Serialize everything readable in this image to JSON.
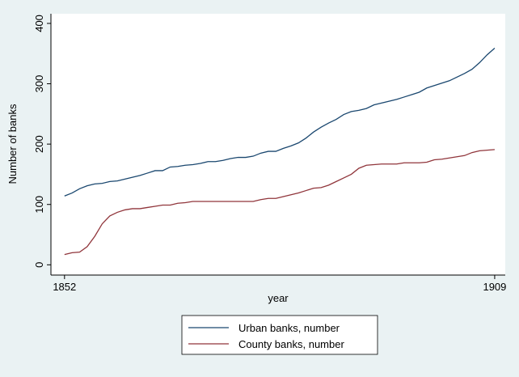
{
  "chart_data": {
    "type": "line",
    "x_label": "year",
    "y_label": "Number of banks",
    "x": [
      1852,
      1853,
      1854,
      1855,
      1856,
      1857,
      1858,
      1859,
      1860,
      1861,
      1862,
      1863,
      1864,
      1865,
      1866,
      1867,
      1868,
      1869,
      1870,
      1871,
      1872,
      1873,
      1874,
      1875,
      1876,
      1877,
      1878,
      1879,
      1880,
      1881,
      1882,
      1883,
      1884,
      1885,
      1886,
      1887,
      1888,
      1889,
      1890,
      1891,
      1892,
      1893,
      1894,
      1895,
      1896,
      1897,
      1898,
      1899,
      1900,
      1901,
      1902,
      1903,
      1904,
      1905,
      1906,
      1907,
      1908,
      1909
    ],
    "series": [
      {
        "name": "Urban banks, number",
        "color": "#1a476f",
        "values": [
          114,
          119,
          126,
          131,
          134,
          135,
          138,
          139,
          142,
          145,
          148,
          152,
          156,
          156,
          162,
          163,
          165,
          166,
          168,
          171,
          171,
          173,
          176,
          178,
          178,
          180,
          185,
          188,
          188,
          193,
          197,
          202,
          210,
          220,
          228,
          235,
          241,
          249,
          254,
          256,
          259,
          265,
          268,
          271,
          274,
          278,
          282,
          286,
          293,
          297,
          301,
          305,
          311,
          317,
          324,
          335,
          348,
          359
        ]
      },
      {
        "name": "County banks, number",
        "color": "#90353b",
        "values": [
          17,
          20,
          21,
          30,
          47,
          68,
          81,
          87,
          91,
          93,
          93,
          95,
          97,
          99,
          99,
          102,
          103,
          105,
          105,
          105,
          105,
          105,
          105,
          105,
          105,
          105,
          108,
          110,
          110,
          113,
          116,
          119,
          123,
          127,
          128,
          132,
          138,
          144,
          150,
          160,
          165,
          166,
          167,
          167,
          167,
          169,
          169,
          169,
          170,
          174,
          175,
          177,
          179,
          181,
          186,
          189,
          190,
          191
        ]
      }
    ],
    "xlim": [
      1850.2,
      1910.4
    ],
    "xticks": [
      1852,
      1909
    ],
    "ylim": [
      -17,
      416
    ],
    "yticks": [
      0,
      100,
      200,
      300,
      400
    ]
  }
}
